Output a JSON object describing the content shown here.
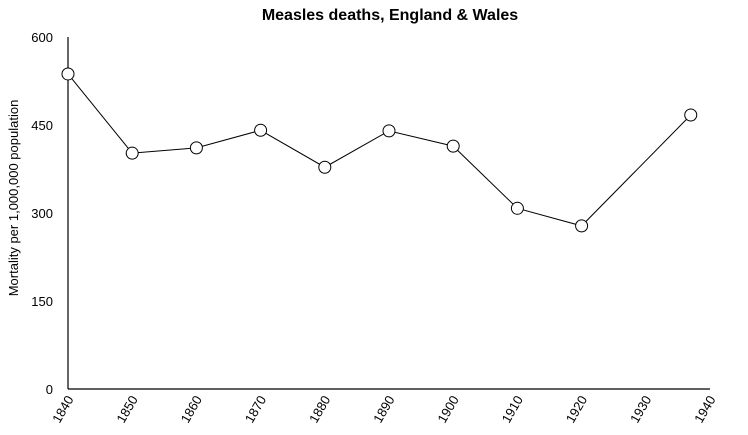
{
  "chart_data": {
    "type": "line",
    "title": "Measles deaths, England & Wales",
    "xlabel": "",
    "ylabel": "Mortality per 1,000,000 population",
    "x": [
      1840,
      1850,
      1860,
      1870,
      1880,
      1890,
      1900,
      1910,
      1920,
      1937
    ],
    "series": [
      {
        "name": "Measles deaths",
        "values": [
          537,
          402,
          411,
          441,
          378,
          440,
          414,
          308,
          278,
          467
        ]
      }
    ],
    "xlim": [
      1840,
      1940
    ],
    "ylim": [
      0,
      600
    ],
    "xticks": [
      "1840",
      "1850",
      "1860",
      "1870",
      "1880",
      "1890",
      "1900",
      "1910",
      "1920",
      "1930",
      "1940"
    ],
    "yticks": [
      "0",
      "150",
      "300",
      "450",
      "600"
    ],
    "grid": false,
    "legend": "none",
    "marker": "open-circle"
  }
}
